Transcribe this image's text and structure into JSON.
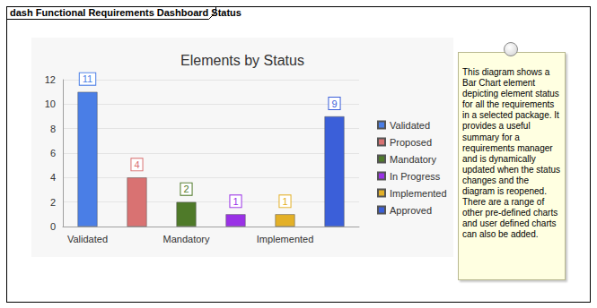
{
  "frame": {
    "title": "dash Functional Requirements Dashboard Status"
  },
  "chart_data": {
    "type": "bar",
    "title": "Elements by Status",
    "categories": [
      "Validated",
      null,
      "Mandatory",
      null,
      "Implemented",
      null
    ],
    "series": [
      {
        "name": "Validated",
        "color": "#4a7ee6",
        "values": [
          11,
          null,
          null,
          null,
          null,
          null
        ]
      },
      {
        "name": "Proposed",
        "color": "#d97272",
        "values": [
          null,
          4,
          null,
          null,
          null,
          null
        ]
      },
      {
        "name": "Mandatory",
        "color": "#4f7a29",
        "values": [
          null,
          null,
          2,
          null,
          null,
          null
        ]
      },
      {
        "name": "In Progress",
        "color": "#9a32e6",
        "values": [
          null,
          null,
          null,
          1,
          null,
          null
        ]
      },
      {
        "name": "Implemented",
        "color": "#e3b027",
        "values": [
          null,
          null,
          null,
          null,
          1,
          null
        ]
      },
      {
        "name": "Approved",
        "color": "#3b5fd9",
        "values": [
          null,
          null,
          null,
          null,
          null,
          9
        ]
      }
    ],
    "ylim": [
      0,
      12
    ],
    "yticks": [
      0,
      2,
      4,
      6,
      8,
      10,
      12
    ],
    "grid": true,
    "legend": "right",
    "data_labels": true
  },
  "note": {
    "text": "This diagram shows a Bar Chart element depicting element status for all the requirements in a selected package. It provides a useful summary for a requirements manager and is dynamically updated when the status changes and the diagram is reopened. There are a range of other pre-defined charts and user defined charts can also be added."
  }
}
